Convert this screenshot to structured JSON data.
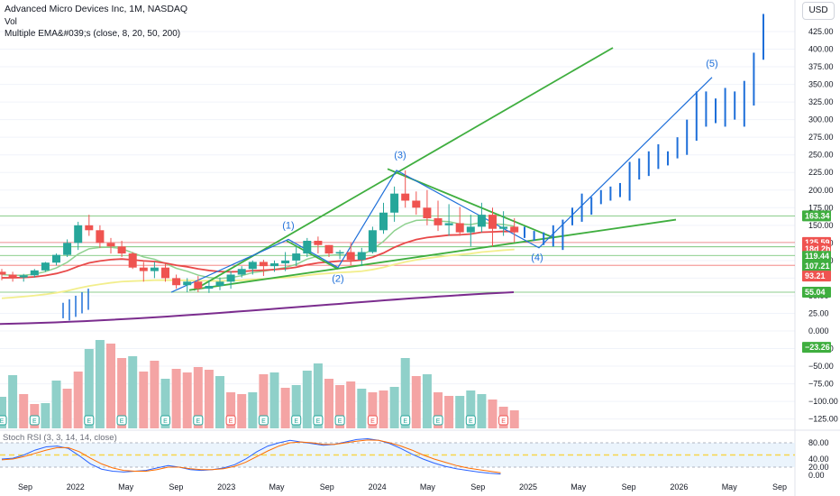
{
  "header": {
    "title": "Advanced Micro Devices Inc, 1M, NASDAQ",
    "vol_label": "Vol",
    "ema_label": "Multiple EMA&#039;s (close, 8, 20, 50, 200)",
    "currency_button": "USD"
  },
  "stoch_label": "Stoch RSI (3, 3, 14, 14, close)",
  "colors": {
    "up": "#26a69a",
    "down": "#ef5350",
    "projection": "#1e6fd9",
    "trendline": "#3fae3f",
    "ema8": "#8fd18f",
    "ema20": "#e84848",
    "ema50": "#f2ee8c",
    "ema200": "#7b2d8e",
    "stoch_k": "#2962ff",
    "stoch_d": "#ff6d00",
    "vol_up": "#8fd0c9",
    "vol_down": "#f4a4a4"
  },
  "chart_data": {
    "type": "candlestick",
    "price_axis": {
      "min": -125,
      "max": 450,
      "ticks": [
        "425.00",
        "400.00",
        "375.00",
        "350.00",
        "325.00",
        "300.00",
        "275.00",
        "250.00",
        "225.00",
        "200.00",
        "175.00",
        "150.00",
        "125.00",
        "100.00",
        "75.00",
        "50.00",
        "25.00",
        "0.000",
        "−25.00",
        "−50.00",
        "−75.00",
        "−100.00",
        "−125.00"
      ]
    },
    "time_axis": [
      "Sep",
      "2022",
      "May",
      "Sep",
      "2023",
      "May",
      "Sep",
      "2024",
      "May",
      "Sep",
      "2025",
      "May",
      "Sep",
      "2026",
      "May",
      "Sep"
    ],
    "price_badges": [
      {
        "label": "163.34",
        "value": 163.34,
        "color": "#3fae3f"
      },
      {
        "label": "125.59",
        "value": 125.59,
        "color": "#ef5350"
      },
      {
        "label": "18d 2h",
        "value": 116.5,
        "color": "#ef5350"
      },
      {
        "label": "119.44",
        "value": 106,
        "color": "#3fae3f"
      },
      {
        "label": "107.21",
        "value": 92,
        "color": "#3fae3f"
      },
      {
        "label": "93.21",
        "value": 78,
        "color": "#ef5350"
      },
      {
        "label": "55.04",
        "value": 55.04,
        "color": "#3fae3f"
      },
      {
        "label": "−23.26",
        "value": -23.26,
        "color": "#3fae3f"
      }
    ],
    "candles": [
      [
        84,
        88,
        72,
        80
      ],
      [
        80,
        84,
        70,
        76
      ],
      [
        76,
        81,
        70,
        79
      ],
      [
        79,
        88,
        76,
        86
      ],
      [
        86,
        98,
        84,
        97
      ],
      [
        97,
        110,
        93,
        108
      ],
      [
        108,
        130,
        105,
        125
      ],
      [
        125,
        155,
        115,
        150
      ],
      [
        150,
        165,
        135,
        143
      ],
      [
        143,
        150,
        118,
        125
      ],
      [
        125,
        132,
        110,
        120
      ],
      [
        120,
        128,
        105,
        110
      ],
      [
        110,
        112,
        88,
        90
      ],
      [
        90,
        98,
        70,
        85
      ],
      [
        85,
        98,
        75,
        90
      ],
      [
        90,
        95,
        70,
        75
      ],
      [
        75,
        80,
        60,
        65
      ],
      [
        65,
        75,
        55,
        70
      ],
      [
        70,
        78,
        55,
        60
      ],
      [
        60,
        72,
        54,
        64
      ],
      [
        64,
        76,
        58,
        70
      ],
      [
        70,
        85,
        60,
        80
      ],
      [
        80,
        92,
        76,
        88
      ],
      [
        88,
        100,
        80,
        98
      ],
      [
        98,
        101,
        78,
        92
      ],
      [
        92,
        100,
        84,
        96
      ],
      [
        96,
        112,
        85,
        100
      ],
      [
        100,
        120,
        92,
        110
      ],
      [
        110,
        132,
        105,
        128
      ],
      [
        128,
        134,
        110,
        122
      ],
      [
        122,
        122,
        105,
        110
      ],
      [
        110,
        115,
        102,
        112
      ],
      [
        112,
        125,
        93,
        101
      ],
      [
        101,
        118,
        92,
        112
      ],
      [
        112,
        148,
        110,
        143
      ],
      [
        143,
        182,
        138,
        168
      ],
      [
        168,
        205,
        155,
        195
      ],
      [
        195,
        228,
        175,
        185
      ],
      [
        185,
        198,
        165,
        175
      ],
      [
        175,
        200,
        150,
        160
      ],
      [
        160,
        185,
        142,
        150
      ],
      [
        150,
        180,
        135,
        153
      ],
      [
        153,
        176,
        135,
        140
      ],
      [
        140,
        165,
        120,
        148
      ],
      [
        148,
        182,
        140,
        165
      ],
      [
        165,
        175,
        120,
        145
      ],
      [
        145,
        170,
        135,
        148
      ],
      [
        148,
        160,
        126,
        140
      ]
    ],
    "projection_bars": [
      [
        132,
        148
      ],
      [
        128,
        142
      ],
      [
        122,
        140
      ],
      [
        120,
        150
      ],
      [
        115,
        158
      ],
      [
        150,
        175
      ],
      [
        155,
        195
      ],
      [
        165,
        190
      ],
      [
        180,
        200
      ],
      [
        185,
        205
      ],
      [
        190,
        210
      ],
      [
        185,
        240
      ],
      [
        215,
        245
      ],
      [
        220,
        255
      ],
      [
        230,
        265
      ],
      [
        235,
        255
      ],
      [
        245,
        275
      ],
      [
        250,
        300
      ],
      [
        270,
        340
      ],
      [
        290,
        340
      ],
      [
        295,
        330
      ],
      [
        290,
        345
      ],
      [
        300,
        340
      ],
      [
        290,
        355
      ],
      [
        320,
        395
      ],
      [
        385,
        450
      ]
    ],
    "wave_labels": [
      "(1)",
      "(2)",
      "(3)",
      "(4)",
      "(5)"
    ],
    "volume": [
      [
        1,
        0.35
      ],
      [
        1,
        0.59
      ],
      [
        0,
        0.38
      ],
      [
        0,
        0.27
      ],
      [
        1,
        0.28
      ],
      [
        1,
        0.53
      ],
      [
        0,
        0.44
      ],
      [
        0,
        0.63
      ],
      [
        1,
        0.88
      ],
      [
        1,
        0.98
      ],
      [
        0,
        0.94
      ],
      [
        0,
        0.78
      ],
      [
        1,
        0.8
      ],
      [
        0,
        0.63
      ],
      [
        0,
        0.75
      ],
      [
        1,
        0.55
      ],
      [
        0,
        0.66
      ],
      [
        0,
        0.62
      ],
      [
        0,
        0.68
      ],
      [
        0,
        0.65
      ],
      [
        1,
        0.58
      ],
      [
        0,
        0.4
      ],
      [
        0,
        0.38
      ],
      [
        1,
        0.4
      ],
      [
        0,
        0.6
      ],
      [
        1,
        0.62
      ],
      [
        0,
        0.45
      ],
      [
        1,
        0.48
      ],
      [
        1,
        0.64
      ],
      [
        1,
        0.72
      ],
      [
        0,
        0.55
      ],
      [
        0,
        0.48
      ],
      [
        0,
        0.52
      ],
      [
        1,
        0.44
      ],
      [
        0,
        0.4
      ],
      [
        0,
        0.42
      ],
      [
        1,
        0.46
      ],
      [
        1,
        0.78
      ],
      [
        0,
        0.58
      ],
      [
        1,
        0.6
      ],
      [
        0,
        0.4
      ],
      [
        0,
        0.36
      ],
      [
        1,
        0.36
      ],
      [
        1,
        0.42
      ],
      [
        1,
        0.38
      ],
      [
        0,
        0.32
      ],
      [
        0,
        0.24
      ],
      [
        0,
        0.2
      ]
    ],
    "stoch_rsi": {
      "ticks": [
        "80.00",
        "40.00",
        "20.00",
        "0.00"
      ],
      "k": [
        40,
        42,
        50,
        62,
        70,
        72,
        66,
        48,
        28,
        15,
        10,
        8,
        10,
        12,
        18,
        24,
        20,
        14,
        12,
        14,
        18,
        26,
        40,
        58,
        72,
        80,
        86,
        82,
        78,
        74,
        76,
        82,
        88,
        90,
        86,
        78,
        66,
        52,
        40,
        30,
        22,
        16,
        12,
        8,
        5,
        3
      ],
      "d": [
        38,
        40,
        46,
        54,
        62,
        68,
        68,
        58,
        42,
        28,
        18,
        12,
        10,
        10,
        14,
        20,
        20,
        16,
        14,
        14,
        16,
        22,
        32,
        46,
        60,
        72,
        80,
        82,
        80,
        76,
        76,
        80,
        84,
        87,
        86,
        80,
        72,
        62,
        50,
        40,
        32,
        24,
        18,
        14,
        10,
        6
      ]
    }
  }
}
